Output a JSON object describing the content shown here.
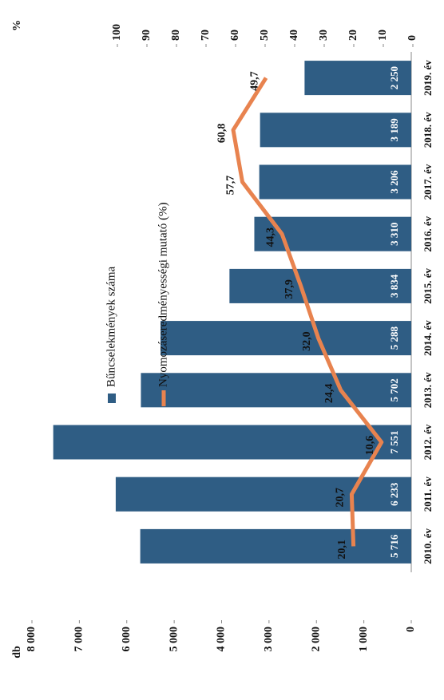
{
  "chart_data": {
    "type": "bar",
    "categories": [
      "2010. év",
      "2011. év",
      "2012. év",
      "2013. év",
      "2014. év",
      "2015. év",
      "2016. év",
      "2017. év",
      "2018. év",
      "2019. év"
    ],
    "y_label": "db",
    "y2_label": "%",
    "ylim": [
      0,
      8000
    ],
    "yticks": [
      0,
      {
        "value": 1000,
        "label": "1 000"
      },
      {
        "value": 2000,
        "label": "2 000"
      },
      {
        "value": 3000,
        "label": "3 000"
      },
      {
        "value": 4000,
        "label": "4 000"
      },
      {
        "value": 5000,
        "label": "5 000"
      },
      {
        "value": 6000,
        "label": "6 000"
      },
      {
        "value": 7000,
        "label": "7 000"
      },
      {
        "value": 8000,
        "label": "8 000"
      }
    ],
    "y2lim": [
      0,
      100
    ],
    "y2ticks": [
      0,
      10,
      20,
      30,
      40,
      50,
      60,
      70,
      80,
      90,
      100
    ],
    "series": [
      {
        "name": "Bűncselekmények száma",
        "type": "bar",
        "color": "#2f5d84",
        "values": [
          5716,
          6233,
          7551,
          5702,
          5288,
          3834,
          3310,
          3206,
          3189,
          2250
        ],
        "value_labels": [
          "5 716",
          "6 233",
          "7 551",
          "5 702",
          "5 288",
          "3 834",
          "3 310",
          "3 206",
          "3 189",
          "2 250"
        ]
      },
      {
        "name": "Nyomozáseredményességi mutató (%)",
        "type": "line",
        "axis": "y2",
        "color": "#e8834f",
        "values": [
          20.1,
          20.7,
          10.6,
          24.4,
          32.0,
          37.9,
          44.3,
          57.7,
          60.8,
          49.7
        ],
        "value_labels": [
          "20,1",
          "20,7",
          "10,6",
          "24,4",
          "32,0",
          "37,9",
          "44,3",
          "57,7",
          "60,8",
          "49,7"
        ]
      }
    ]
  }
}
